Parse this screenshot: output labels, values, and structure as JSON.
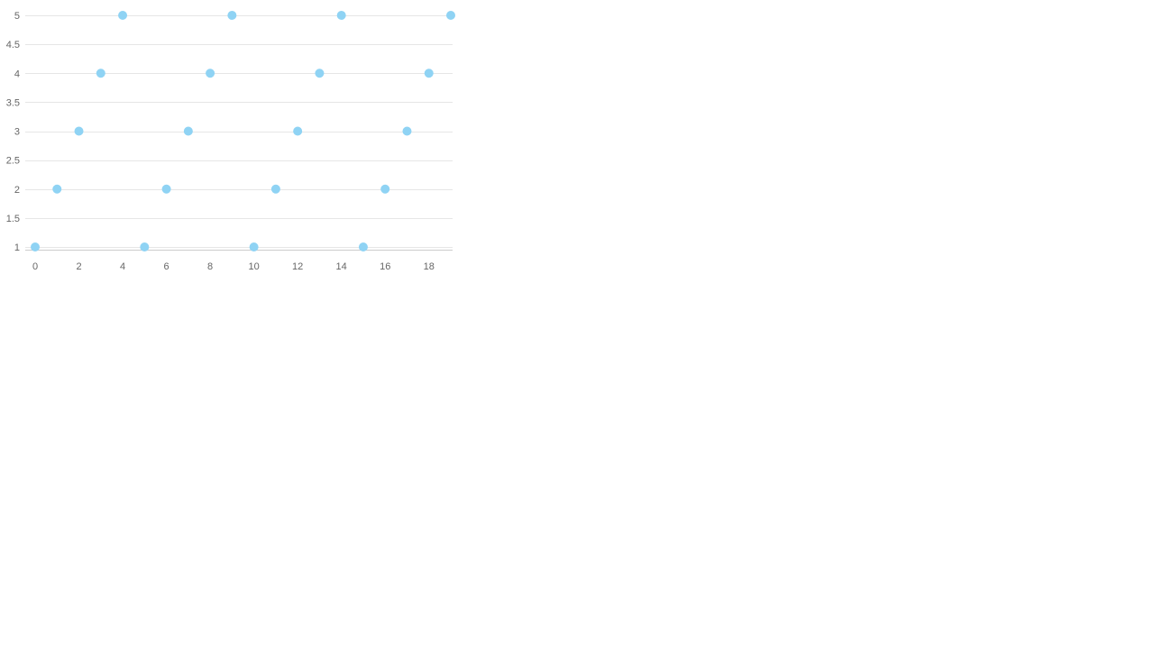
{
  "chart_data": {
    "type": "scatter",
    "title": "",
    "xlabel": "",
    "ylabel": "",
    "xlim": [
      0,
      19
    ],
    "ylim": [
      1,
      5
    ],
    "grid": true,
    "legend": "none",
    "x_ticks": [
      "0",
      "2",
      "4",
      "6",
      "8",
      "10",
      "12",
      "14",
      "16",
      "18"
    ],
    "x_tick_values": [
      0,
      2,
      4,
      6,
      8,
      10,
      12,
      14,
      16,
      18
    ],
    "y_ticks": [
      "1",
      "1.5",
      "2",
      "2.5",
      "3",
      "3.5",
      "4",
      "4.5",
      "5"
    ],
    "y_tick_values": [
      1,
      1.5,
      2,
      2.5,
      3,
      3.5,
      4,
      4.5,
      5
    ],
    "series": [
      {
        "color": "#8fd3f4",
        "points": [
          {
            "x": 0,
            "y": 1
          },
          {
            "x": 1,
            "y": 2
          },
          {
            "x": 2,
            "y": 3
          },
          {
            "x": 3,
            "y": 4
          },
          {
            "x": 4,
            "y": 5
          },
          {
            "x": 5,
            "y": 1
          },
          {
            "x": 6,
            "y": 2
          },
          {
            "x": 7,
            "y": 3
          },
          {
            "x": 8,
            "y": 4
          },
          {
            "x": 9,
            "y": 5
          },
          {
            "x": 10,
            "y": 1
          },
          {
            "x": 11,
            "y": 2
          },
          {
            "x": 12,
            "y": 3
          },
          {
            "x": 13,
            "y": 4
          },
          {
            "x": 14,
            "y": 5
          },
          {
            "x": 15,
            "y": 1
          },
          {
            "x": 16,
            "y": 2
          },
          {
            "x": 17,
            "y": 3
          },
          {
            "x": 18,
            "y": 4
          },
          {
            "x": 19,
            "y": 5
          }
        ]
      }
    ]
  }
}
